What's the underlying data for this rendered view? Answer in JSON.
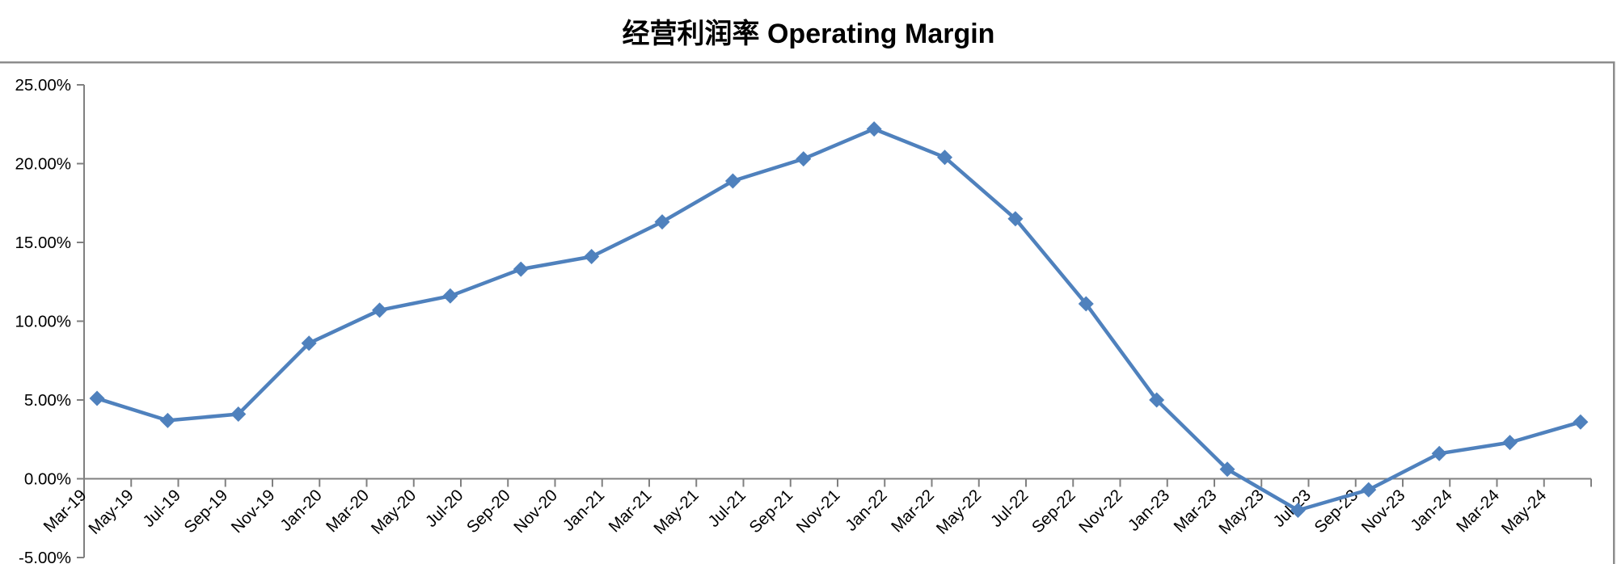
{
  "chart_data": {
    "type": "line",
    "title": "经营利润率 Operating Margin",
    "series_name": "Operating Margin",
    "series_color": "#4F81BD",
    "marker": "diamond",
    "axis_color": "#808080",
    "text_color": "#000000",
    "grid": false,
    "legend": false,
    "ylabel": "",
    "xlabel": "",
    "ylim": [
      -5,
      25
    ],
    "y_ticks": [
      25,
      20,
      15,
      10,
      5,
      0,
      -5
    ],
    "y_tick_labels": [
      "25.00%",
      "20.00%",
      "15.00%",
      "10.00%",
      "5.00%",
      "0.00%",
      "-5.00%"
    ],
    "x_tick_labels": [
      "Mar-19",
      "May-19",
      "Jul-19",
      "Sep-19",
      "Nov-19",
      "Jan-20",
      "Mar-20",
      "May-20",
      "Jul-20",
      "Sep-20",
      "Nov-20",
      "Jan-21",
      "Mar-21",
      "May-21",
      "Jul-21",
      "Sep-21",
      "Nov-21",
      "Jan-22",
      "Mar-22",
      "May-22",
      "Jul-22",
      "Sep-22",
      "Nov-22",
      "Jan-23",
      "Mar-23",
      "May-23",
      "Jul-23",
      "Sep-23",
      "Nov-23",
      "Jan-24",
      "Mar-24",
      "May-24"
    ],
    "x": [
      "Mar-19",
      "Jun-19",
      "Sep-19",
      "Dec-19",
      "Mar-20",
      "Jun-20",
      "Sep-20",
      "Dec-20",
      "Mar-21",
      "Jun-21",
      "Sep-21",
      "Dec-21",
      "Mar-22",
      "Jun-22",
      "Sep-22",
      "Dec-22",
      "Mar-23",
      "Jun-23",
      "Sep-23",
      "Dec-23",
      "Mar-24",
      "Jun-24"
    ],
    "values_pct": [
      5.1,
      3.7,
      4.1,
      8.6,
      10.7,
      11.6,
      13.3,
      14.1,
      16.3,
      18.9,
      20.3,
      22.2,
      20.4,
      16.5,
      11.1,
      5.0,
      0.6,
      -2.0,
      -0.7,
      1.6,
      2.3,
      3.6
    ]
  }
}
